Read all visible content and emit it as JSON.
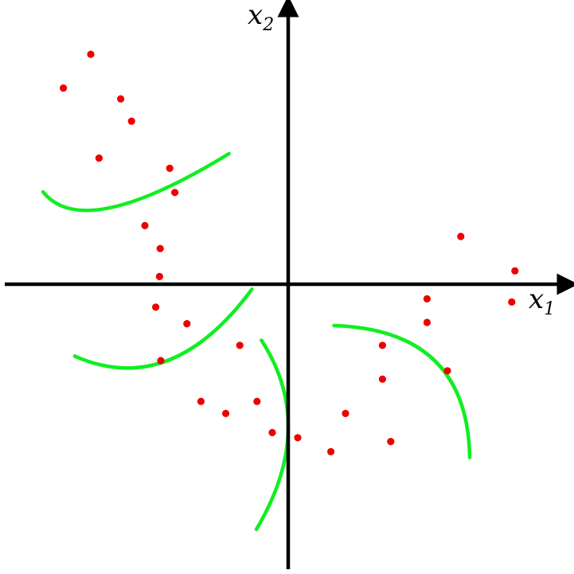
{
  "axes": {
    "x_label": "x",
    "x_subscript": "1",
    "y_label": "x",
    "y_subscript": "2"
  },
  "colors": {
    "axis": "#000000",
    "point": "#ee0000",
    "curve": "#11ee22"
  },
  "points": [
    {
      "x": -3.1,
      "y": 3.61
    },
    {
      "x": -3.53,
      "y": 3.08
    },
    {
      "x": -2.63,
      "y": 2.91
    },
    {
      "x": -2.46,
      "y": 2.56
    },
    {
      "x": -2.97,
      "y": 1.98
    },
    {
      "x": -1.86,
      "y": 1.82
    },
    {
      "x": -1.78,
      "y": 1.44
    },
    {
      "x": -2.25,
      "y": 0.92
    },
    {
      "x": -2.01,
      "y": 0.56
    },
    {
      "x": -2.02,
      "y": 0.12
    },
    {
      "x": -2.08,
      "y": -0.36
    },
    {
      "x": -1.59,
      "y": -0.62
    },
    {
      "x": -2.0,
      "y": -1.2
    },
    {
      "x": -0.76,
      "y": -0.96
    },
    {
      "x": -1.37,
      "y": -1.84
    },
    {
      "x": -0.98,
      "y": -2.03
    },
    {
      "x": -0.49,
      "y": -1.84
    },
    {
      "x": -0.25,
      "y": -2.33
    },
    {
      "x": 0.15,
      "y": -2.41
    },
    {
      "x": 0.67,
      "y": -2.63
    },
    {
      "x": 0.9,
      "y": -2.03
    },
    {
      "x": 1.48,
      "y": -0.96
    },
    {
      "x": 1.48,
      "y": -1.49
    },
    {
      "x": 1.61,
      "y": -2.47
    },
    {
      "x": 2.5,
      "y": -1.36
    },
    {
      "x": 2.18,
      "y": -0.6
    },
    {
      "x": 2.18,
      "y": -0.23
    },
    {
      "x": 2.71,
      "y": 0.75
    },
    {
      "x": 3.56,
      "y": 0.21
    },
    {
      "x": 3.51,
      "y": -0.28
    }
  ],
  "curves": [
    [
      [
        -3.85,
        1.45
      ],
      [
        -2.8,
        1.2
      ],
      [
        -0.93,
        2.05
      ]
    ],
    [
      [
        -3.35,
        -1.13
      ],
      [
        -1.9,
        -1.2
      ],
      [
        -0.57,
        -0.08
      ]
    ],
    [
      [
        -0.42,
        -0.88
      ],
      [
        0.0,
        -2.3
      ],
      [
        -0.5,
        -3.85
      ]
    ],
    [
      [
        0.72,
        -0.65
      ],
      [
        2.3,
        -1.2
      ],
      [
        2.85,
        -2.72
      ]
    ]
  ]
}
